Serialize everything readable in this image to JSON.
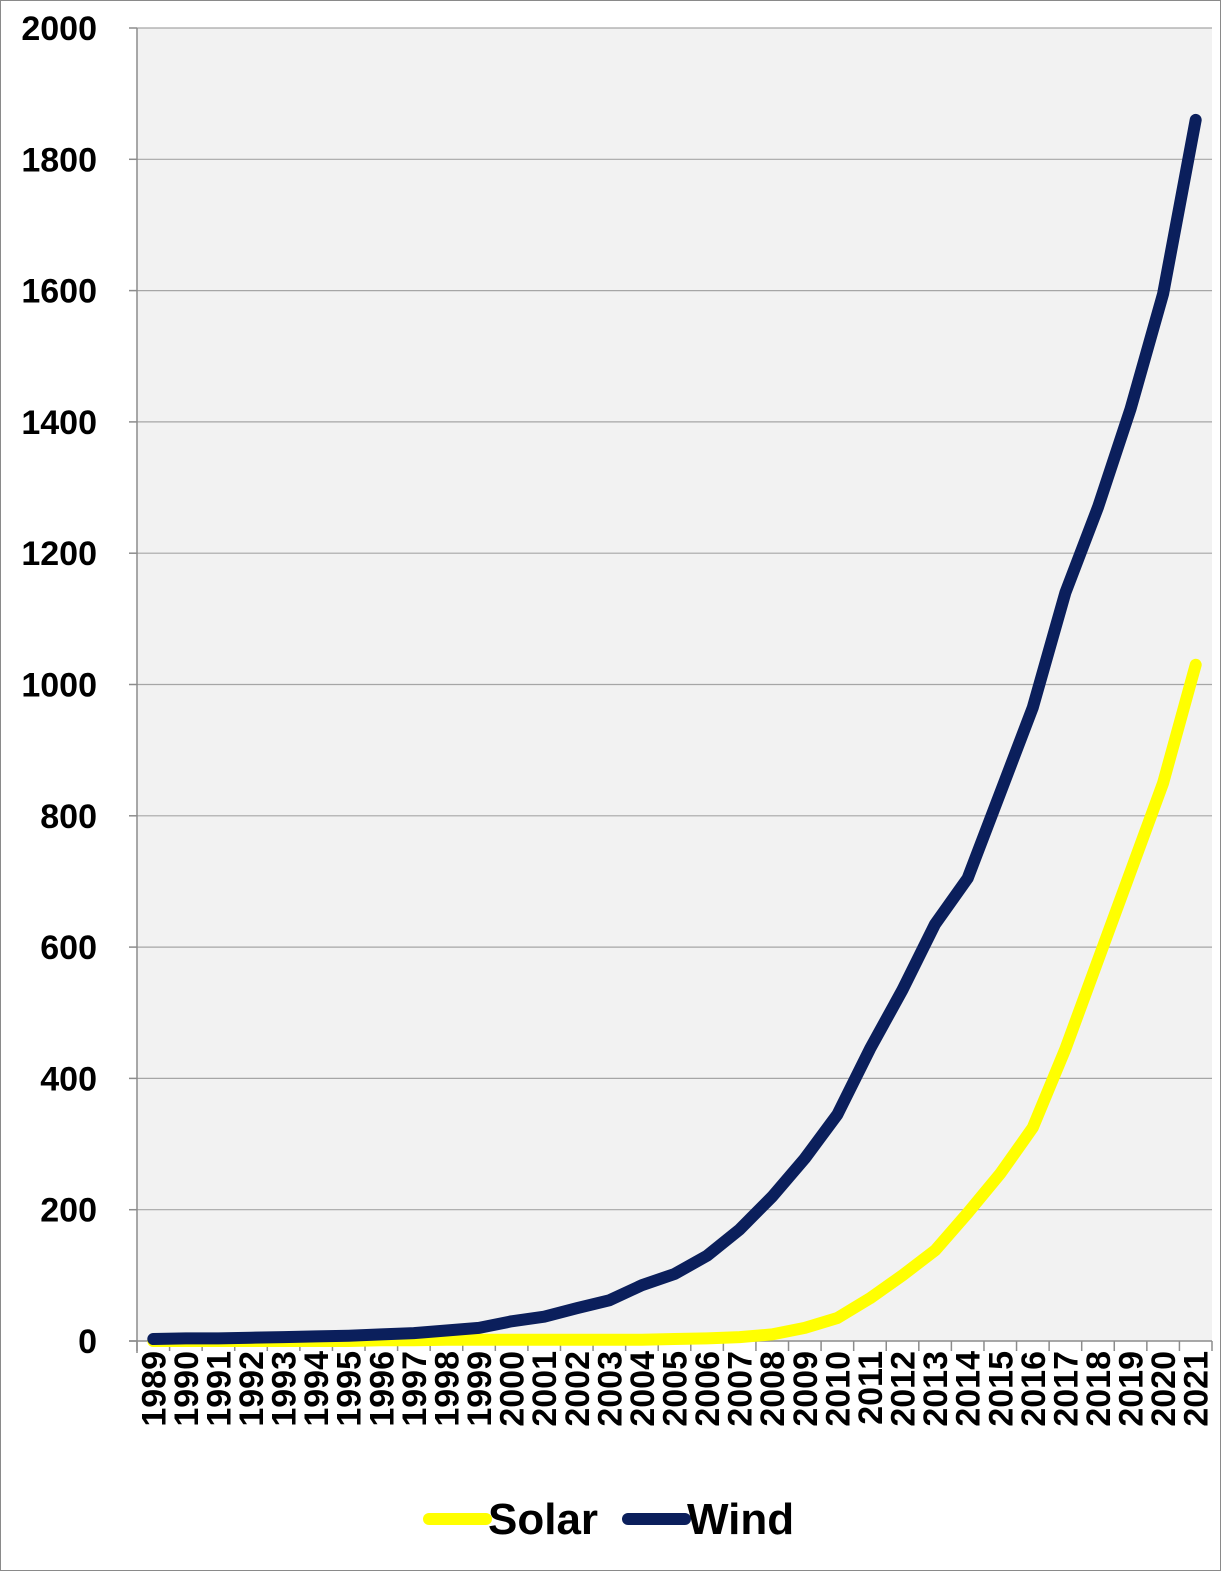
{
  "colors": {
    "plot_background": "#f2f2f2",
    "gridline": "#a6a6a6",
    "solar": "#ffff00",
    "wind": "#0b1f5c"
  },
  "chart_data": {
    "type": "line",
    "title": "",
    "xlabel": "",
    "ylabel": "",
    "ylim": [
      0,
      2000
    ],
    "yticks": [
      0,
      200,
      400,
      600,
      800,
      1000,
      1200,
      1400,
      1600,
      1800,
      2000
    ],
    "grid": true,
    "legend_position": "bottom",
    "categories": [
      "1989",
      "1990",
      "1991",
      "1992",
      "1993",
      "1994",
      "1995",
      "1996",
      "1997",
      "1998",
      "1999",
      "2000",
      "2001",
      "2002",
      "2003",
      "2004",
      "2005",
      "2006",
      "2007",
      "2008",
      "2009",
      "2010",
      "2011",
      "2012",
      "2013",
      "2014",
      "2015",
      "2016",
      "2017",
      "2018",
      "2019",
      "2020",
      "2021"
    ],
    "series": [
      {
        "name": "Solar",
        "color": "#ffff00",
        "values": [
          0,
          0,
          0,
          0,
          0,
          0,
          0,
          1,
          1,
          2,
          2,
          2,
          2,
          2,
          2,
          2,
          3,
          4,
          6,
          10,
          20,
          35,
          65,
          100,
          138,
          195,
          255,
          325,
          445,
          580,
          715,
          850,
          1030
        ]
      },
      {
        "name": "Wind",
        "color": "#0b1f5c",
        "values": [
          3,
          4,
          4,
          5,
          6,
          7,
          8,
          10,
          12,
          16,
          20,
          30,
          37,
          50,
          62,
          85,
          102,
          130,
          170,
          220,
          278,
          345,
          445,
          535,
          635,
          705,
          835,
          965,
          1140,
          1270,
          1420,
          1595,
          1860
        ]
      }
    ]
  }
}
